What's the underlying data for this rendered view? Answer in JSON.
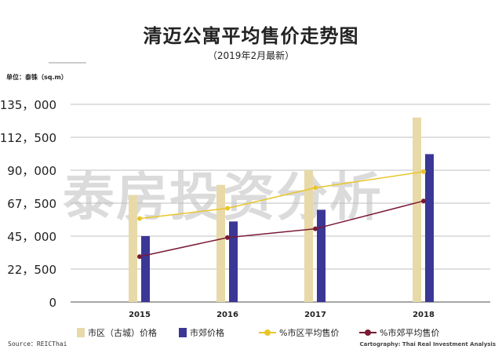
{
  "title": "清迈公寓平均售价走势图",
  "subtitle": "（2019年2月最新）",
  "unit_label": "单位：泰铢（sq.m）",
  "source": "Source：REICThai",
  "cartography": "Cartography: Thai Real Investment Analysis",
  "watermark": "泰房投资分析",
  "colors": {
    "city_bar": "#e8d9a8",
    "suburb_bar": "#3b3796",
    "city_line": "#e8c62a",
    "suburb_line": "#7a1a35",
    "grid": "#bfbfbf"
  },
  "chart_data": {
    "type": "bar",
    "title": "清迈公寓平均售价走势图",
    "categories": [
      "2015",
      "2016",
      "2017",
      "2018"
    ],
    "y_ticks": [
      "135，000",
      "112，500",
      "90，000",
      "67，500",
      "45，000",
      "22，500",
      "0"
    ],
    "ylim": [
      0,
      135000
    ],
    "grid": true,
    "legend_position": "bottom",
    "series": [
      {
        "name": "市区（古城）价格",
        "kind": "bar",
        "values": [
          73000,
          80000,
          90000,
          126000
        ]
      },
      {
        "name": "市郊价格",
        "kind": "bar",
        "values": [
          45000,
          55000,
          63000,
          101000
        ]
      },
      {
        "name": "%市区平均售价",
        "kind": "line",
        "values": [
          57000,
          64000,
          78000,
          89000
        ]
      },
      {
        "name": "%市郊平均售价",
        "kind": "line",
        "values": [
          31000,
          44000,
          50000,
          69000
        ]
      }
    ]
  }
}
